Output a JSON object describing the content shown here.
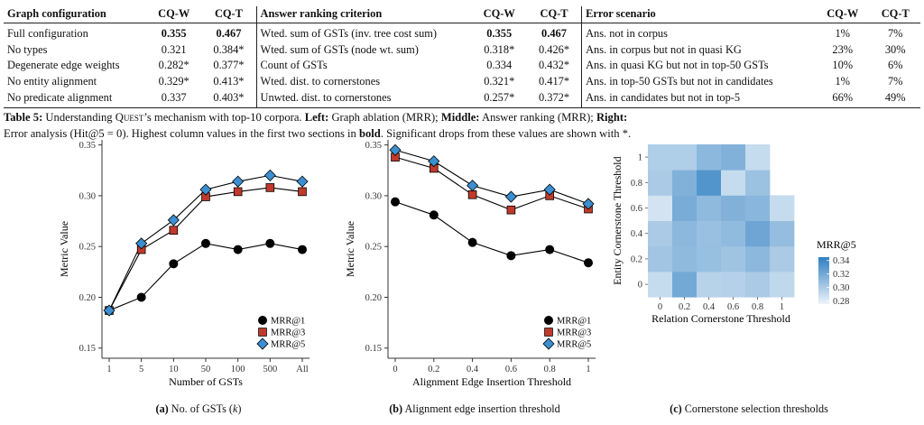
{
  "table": {
    "headers": [
      "Graph configuration",
      "CQ-W",
      "CQ-T",
      "Answer ranking criterion",
      "CQ-W",
      "CQ-T",
      "Error scenario",
      "CQ-W",
      "CQ-T"
    ],
    "rows": [
      [
        "Full configuration",
        "0.355",
        "0.467",
        "Wted. sum of GSTs (inv. tree cost sum)",
        "0.355",
        "0.467",
        "Ans. not in corpus",
        "1%",
        "7%"
      ],
      [
        "No types",
        "0.321",
        "0.384*",
        "Wted. sum of GSTs (node wt. sum)",
        "0.318*",
        "0.426*",
        "Ans. in corpus but not in quasi KG",
        "23%",
        "30%"
      ],
      [
        "Degenerate edge weights",
        "0.282*",
        "0.377*",
        "Count of GSTs",
        "0.334",
        "0.432*",
        "Ans. in quasi KG but not in top-50 GSTs",
        "10%",
        "6%"
      ],
      [
        "No entity alignment",
        "0.329*",
        "0.413*",
        "Wted. dist. to cornerstones",
        "0.321*",
        "0.417*",
        "Ans. in top-50 GSTs but not in candidates",
        "1%",
        "7%"
      ],
      [
        "No predicate alignment",
        "0.337",
        "0.403*",
        "Unwted. dist. to cornerstones",
        "0.257*",
        "0.372*",
        "Ans. in candidates but not in top-5",
        "66%",
        "49%"
      ]
    ]
  },
  "caption": {
    "label": "Table 5:",
    "t1": " Understanding ",
    "quest": "Quest",
    "t2": "’s mechanism with top-10 corpora. ",
    "left": "Left:",
    "t3": " Graph ablation (MRR); ",
    "middle": "Middle:",
    "t4": " Answer ranking (MRR); ",
    "right": "Right:",
    "t5": "Error analysis (Hit@5 = 0). Highest column values in the first two sections in ",
    "bold": "bold",
    "t6": ". Significant drops from these values are shown with *."
  },
  "colors": {
    "mrr1": "#000000",
    "mrr3": "#c0392b",
    "mrr5": "#3b8fd1",
    "heat_low": "#eef4fa",
    "heat_high": "#2f7fc1"
  },
  "chart_data": [
    {
      "type": "line",
      "xlabel": "Number of GSTs",
      "ylabel": "Metric Value",
      "categories": [
        "1",
        "5",
        "10",
        "50",
        "100",
        "500",
        "All"
      ],
      "ylim": [
        0.14,
        0.355
      ],
      "yticks": [
        "0.15",
        "0.20",
        "0.25",
        "0.30",
        "0.35"
      ],
      "legend_position": "bottom-right",
      "series": [
        {
          "name": "MRR@1",
          "marker": "circle",
          "values": [
            0.187,
            0.2,
            0.233,
            0.253,
            0.247,
            0.253,
            0.247
          ]
        },
        {
          "name": "MRR@3",
          "marker": "square",
          "values": [
            0.187,
            0.247,
            0.266,
            0.299,
            0.304,
            0.308,
            0.304
          ]
        },
        {
          "name": "MRR@5",
          "marker": "diamond",
          "values": [
            0.187,
            0.253,
            0.276,
            0.306,
            0.314,
            0.32,
            0.314
          ]
        }
      ],
      "subcaption": {
        "label": "(a)",
        "text": " No. of GSTs (",
        "k": "k",
        "close": ")"
      }
    },
    {
      "type": "line",
      "xlabel": "Alignment Edge Insertion Threshold",
      "ylabel": "Metric Value",
      "categories": [
        "0",
        "0.2",
        "0.4",
        "0.6",
        "0.8",
        "1"
      ],
      "ylim": [
        0.14,
        0.355
      ],
      "yticks": [
        "0.15",
        "0.20",
        "0.25",
        "0.30",
        "0.35"
      ],
      "legend_position": "bottom-right",
      "series": [
        {
          "name": "MRR@1",
          "marker": "circle",
          "values": [
            0.294,
            0.281,
            0.254,
            0.241,
            0.247,
            0.234
          ]
        },
        {
          "name": "MRR@3",
          "marker": "square",
          "values": [
            0.338,
            0.327,
            0.301,
            0.286,
            0.3,
            0.287
          ]
        },
        {
          "name": "MRR@5",
          "marker": "diamond",
          "values": [
            0.345,
            0.334,
            0.31,
            0.299,
            0.306,
            0.292
          ]
        }
      ],
      "subcaption": {
        "label": "(b)",
        "text": " Alignment edge insertion threshold"
      }
    },
    {
      "type": "heatmap",
      "xlabel": "Relation Cornerstone Threshold",
      "ylabel": "Entity Cornerstone Threshold",
      "x": [
        "0",
        "0.2",
        "0.4",
        "0.6",
        "0.8",
        "1"
      ],
      "y": [
        "0",
        "0.2",
        "0.4",
        "0.6",
        "0.8",
        "1"
      ],
      "legend_title": "MRR@5",
      "color_ticks": [
        "0.34",
        "0.32",
        "0.30",
        "0.28"
      ],
      "color_range": [
        0.275,
        0.345
      ],
      "values": [
        [
          0.29,
          0.32,
          0.295,
          0.296,
          0.3,
          0.292
        ],
        [
          0.303,
          0.31,
          0.307,
          0.304,
          0.311,
          0.3
        ],
        [
          0.3,
          0.311,
          0.306,
          0.309,
          0.322,
          0.308
        ],
        [
          0.285,
          0.318,
          0.31,
          0.315,
          0.312,
          0.29
        ],
        [
          0.3,
          0.315,
          0.332,
          0.29,
          0.305,
          null
        ],
        [
          0.298,
          0.298,
          0.311,
          0.315,
          0.29,
          null
        ]
      ],
      "subcaption": {
        "label": "(c)",
        "text": " Cornerstone selection thresholds"
      }
    }
  ]
}
